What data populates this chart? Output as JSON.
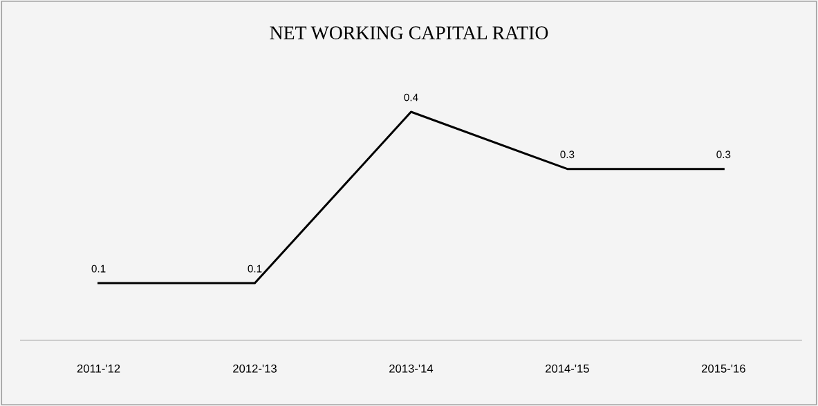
{
  "chart_data": {
    "type": "line",
    "title": "NET WORKING CAPITAL RATIO",
    "categories": [
      "2011-'12",
      "2012-'13",
      "2013-'14",
      "2014-'15",
      "2015-'16"
    ],
    "values": [
      0.1,
      0.1,
      0.4,
      0.3,
      0.3
    ],
    "color": "#000000",
    "data_labels": true,
    "grid": false,
    "legend": false,
    "marker": "none",
    "line_style": "solid"
  }
}
